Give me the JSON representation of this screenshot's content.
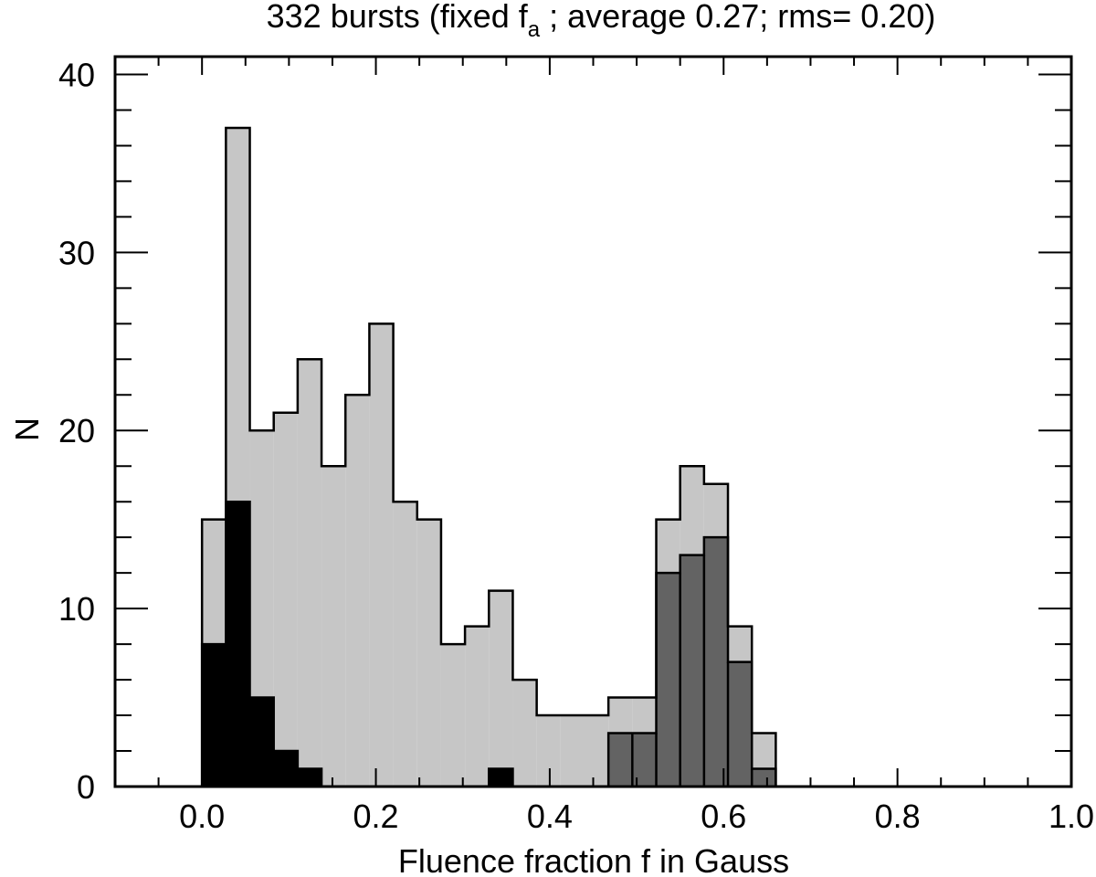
{
  "chart_data": {
    "type": "bar",
    "title_main": "332 bursts (fixed f",
    "title_sub": "a",
    "title_rest": " ; average   0.27; rms=  0.20)",
    "xlabel": "Fluence fraction f in Gauss",
    "ylabel": "N",
    "xlim": [
      -0.1,
      1.0
    ],
    "ylim": [
      0,
      41
    ],
    "xticks": [
      0.0,
      0.2,
      0.4,
      0.6,
      0.8,
      1.0
    ],
    "xtick_labels": [
      "0.0",
      "0.2",
      "0.4",
      "0.6",
      "0.8",
      "1.0"
    ],
    "yticks": [
      0,
      10,
      20,
      30,
      40
    ],
    "ytick_labels": [
      "0",
      "10",
      "20",
      "30",
      "40"
    ],
    "bin_width": 0.0275,
    "bin_starts": [
      0.0,
      0.0275,
      0.055,
      0.0825,
      0.11,
      0.1375,
      0.165,
      0.1925,
      0.22,
      0.2475,
      0.275,
      0.3025,
      0.33,
      0.3575,
      0.385,
      0.4125,
      0.44,
      0.4675,
      0.495,
      0.5225,
      0.55,
      0.5775,
      0.605,
      0.6325,
      0.66
    ],
    "series": [
      {
        "color": "#c6c6c6",
        "values": [
          15,
          37,
          20,
          21,
          24,
          18,
          22,
          26,
          16,
          15,
          8,
          9,
          11,
          6,
          4,
          4,
          4,
          5,
          5,
          15,
          18,
          17,
          9,
          3,
          0
        ]
      },
      {
        "color": "#636363",
        "values": [
          0,
          0,
          0,
          0,
          0,
          0,
          0,
          0,
          0,
          0,
          0,
          0,
          0,
          0,
          0,
          0,
          0,
          3,
          3,
          12,
          13,
          14,
          7,
          1,
          0
        ]
      },
      {
        "color": "#000000",
        "values": [
          8,
          16,
          5,
          2,
          1,
          0,
          0,
          0,
          0,
          0,
          0,
          0,
          1,
          0,
          0,
          0,
          0,
          0,
          0,
          0,
          0,
          0,
          0,
          0,
          0
        ]
      }
    ]
  }
}
